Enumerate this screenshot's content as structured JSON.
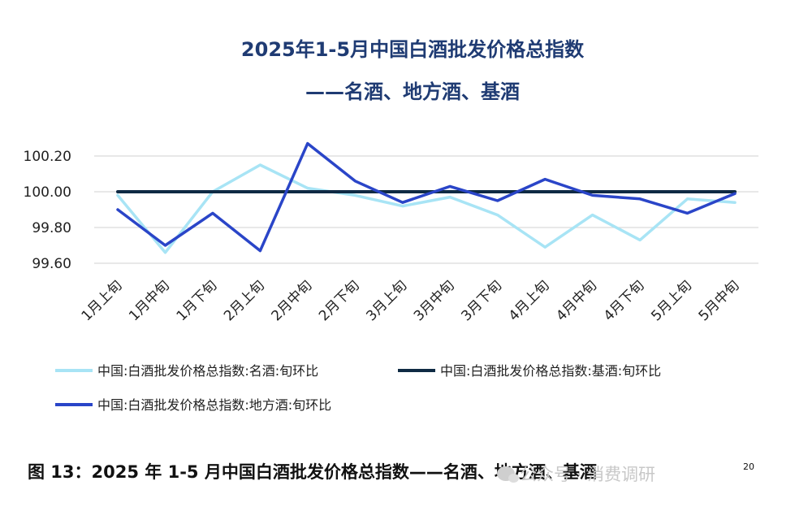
{
  "chart_data": {
    "type": "line",
    "title": "2025年1-5月中国白酒批发价格总指数",
    "subtitle": "——名酒、地方酒、基酒",
    "categories": [
      "1月上旬",
      "1月中旬",
      "1月下旬",
      "2月上旬",
      "2月中旬",
      "2月下旬",
      "3月上旬",
      "3月中旬",
      "3月下旬",
      "4月上旬",
      "4月中旬",
      "4月下旬",
      "5月上旬",
      "5月中旬"
    ],
    "yticks": [
      "100.20",
      "100.00",
      "99.80",
      "99.60"
    ],
    "ylim": [
      99.57,
      100.27
    ],
    "grid": true,
    "legend_position": "bottom",
    "series": [
      {
        "name": "中国:白酒批发价格总指数:名酒:旬环比",
        "color": "#a8e4f5",
        "values": [
          99.98,
          99.66,
          100.0,
          100.15,
          100.02,
          99.98,
          99.92,
          99.97,
          99.87,
          99.69,
          99.87,
          99.73,
          99.96,
          99.94
        ]
      },
      {
        "name": "中国:白酒批发价格总指数:基酒:旬环比",
        "color": "#0f2a44",
        "values": [
          100.0,
          100.0,
          100.0,
          100.0,
          100.0,
          100.0,
          100.0,
          100.0,
          100.0,
          100.0,
          100.0,
          100.0,
          100.0,
          100.0
        ]
      },
      {
        "name": "中国:白酒批发价格总指数:地方酒:旬环比",
        "color": "#2a45c8",
        "values": [
          99.9,
          99.7,
          99.88,
          99.67,
          100.27,
          100.06,
          99.94,
          100.03,
          99.95,
          100.07,
          99.98,
          99.96,
          99.88,
          99.99
        ]
      }
    ]
  },
  "caption": "图 13：2025 年 1-5 月中国白酒批发价格总指数——名酒、地方酒、基酒",
  "page_number": "20",
  "watermark": "公众号 · 消费调研"
}
